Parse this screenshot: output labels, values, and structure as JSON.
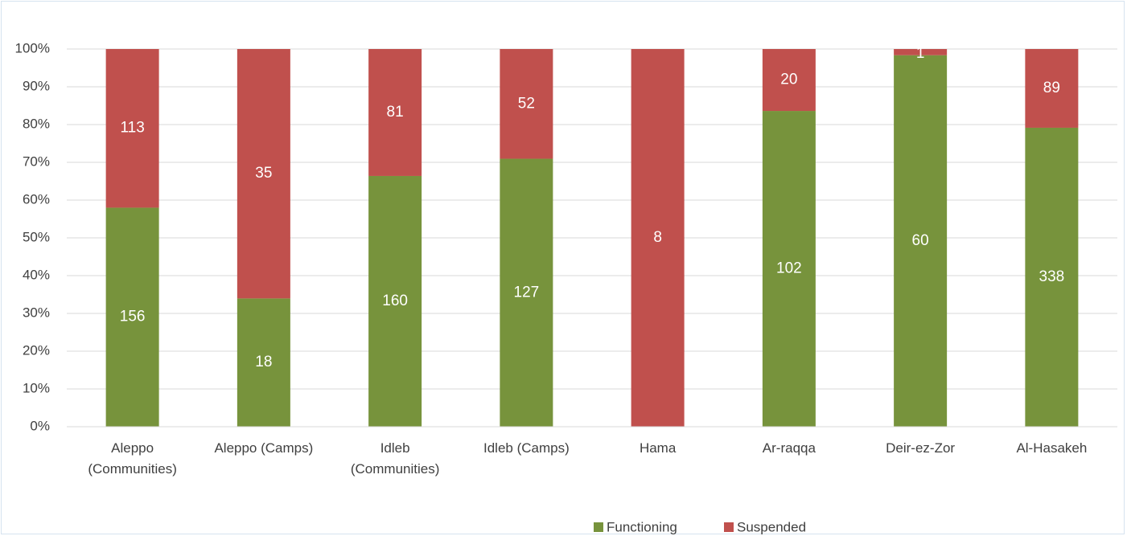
{
  "chart_data": {
    "type": "bar",
    "stacking": "percent",
    "categories": [
      "Aleppo (Communities)",
      "Aleppo (Camps)",
      "Idleb (Communities)",
      "Idleb (Camps)",
      "Hama",
      "Ar-raqqa",
      "Deir-ez-Zor",
      "Al-Hasakeh"
    ],
    "series": [
      {
        "name": "Functioning",
        "color": "#77933c",
        "values": [
          156,
          18,
          160,
          127,
          0,
          102,
          60,
          338
        ]
      },
      {
        "name": "Suspended",
        "color": "#c0504d",
        "values": [
          113,
          35,
          81,
          52,
          8,
          20,
          1,
          89
        ]
      }
    ],
    "ylim": [
      0,
      100
    ],
    "yticks": [
      {
        "value": 0,
        "label": "0%"
      },
      {
        "value": 10,
        "label": "10%"
      },
      {
        "value": 20,
        "label": "20%"
      },
      {
        "value": 30,
        "label": "30%"
      },
      {
        "value": 40,
        "label": "40%"
      },
      {
        "value": 50,
        "label": "50%"
      },
      {
        "value": 60,
        "label": "60%"
      },
      {
        "value": 70,
        "label": "70%"
      },
      {
        "value": 80,
        "label": "80%"
      },
      {
        "value": 90,
        "label": "90%"
      },
      {
        "value": 100,
        "label": "100%"
      }
    ],
    "grid": true,
    "legend": "bottom"
  }
}
